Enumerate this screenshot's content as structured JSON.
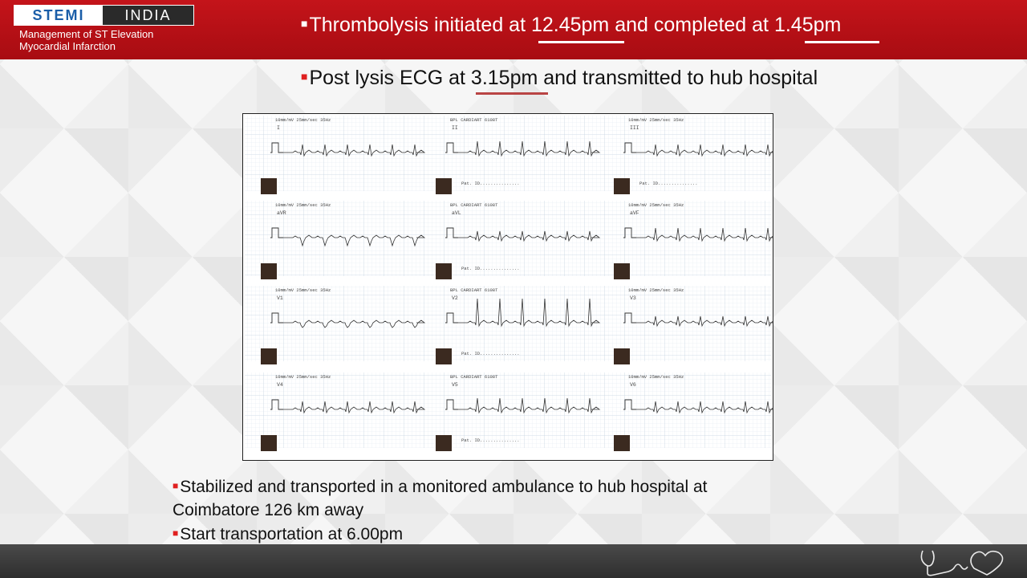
{
  "header": {
    "logo_left": "STEMI",
    "logo_right": "INDIA",
    "logo_sub_line1": "Management of ST Elevation",
    "logo_sub_line2": "Myocardial Infarction",
    "title": "Thrombolysis initiated at 12.45pm and completed at 1.45pm"
  },
  "subtitle": "Post lysis ECG at 3.15pm and transmitted to hub hospital",
  "ecg": {
    "leads": [
      "I",
      "II",
      "III",
      "aVR",
      "aVL",
      "aVF",
      "V1",
      "V2",
      "V3",
      "V4",
      "V5",
      "V6"
    ],
    "device_label": "BPL CARDIART 6108T",
    "settings_label": "10mm/mV 25mm/sec",
    "filter_label": "35Hz",
    "patient_id_label": "Pat. ID..............."
  },
  "bottom": {
    "line1": "Stabilized and transported in a monitored ambulance  to hub hospital at",
    "line2": "Coimbatore 126 km away",
    "line3": "Start transportation at 6.00pm"
  },
  "colors": {
    "header_red": "#c4141a",
    "accent_underline": "#b94444",
    "footer_grey": "#3a3a3a"
  },
  "icons": [
    "stethoscope-heart-icon"
  ]
}
